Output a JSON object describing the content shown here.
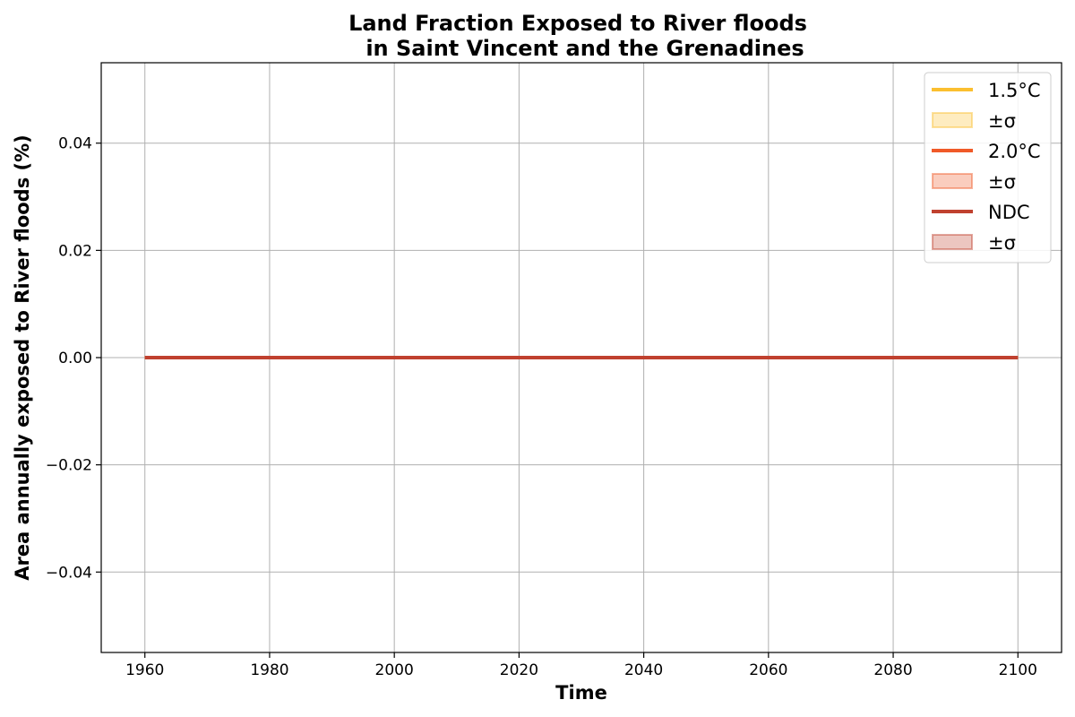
{
  "chart_data": {
    "type": "line",
    "title": [
      "Land Fraction Exposed to River floods",
      "in Saint Vincent and the Grenadines"
    ],
    "xlabel": "Time",
    "ylabel": "Area annually exposed to River floods (%)",
    "xlim": [
      1953,
      2107
    ],
    "ylim": [
      -0.055,
      0.055
    ],
    "grid": true,
    "legend_position": "top-right",
    "x_ticks": [
      1960,
      1980,
      2000,
      2020,
      2040,
      2060,
      2080,
      2100
    ],
    "x_tick_labels": [
      "1960",
      "1980",
      "2000",
      "2020",
      "2040",
      "2060",
      "2080",
      "2100"
    ],
    "y_ticks": [
      -0.04,
      -0.02,
      0.0,
      0.02,
      0.04
    ],
    "y_tick_labels": [
      "−0.04",
      "−0.02",
      "0.00",
      "0.02",
      "0.04"
    ],
    "series": [
      {
        "name": "1.5°C",
        "color": "#fbbf2f",
        "band_label": "±σ",
        "x": [
          1960,
          2100
        ],
        "y": [
          0,
          0
        ]
      },
      {
        "name": "2.0°C",
        "color": "#f05a28",
        "band_label": "±σ",
        "x": [
          1960,
          2100
        ],
        "y": [
          0,
          0
        ]
      },
      {
        "name": "NDC",
        "color": "#c0412f",
        "band_label": "±σ",
        "x": [
          1960,
          2100
        ],
        "y": [
          0,
          0
        ]
      }
    ]
  }
}
